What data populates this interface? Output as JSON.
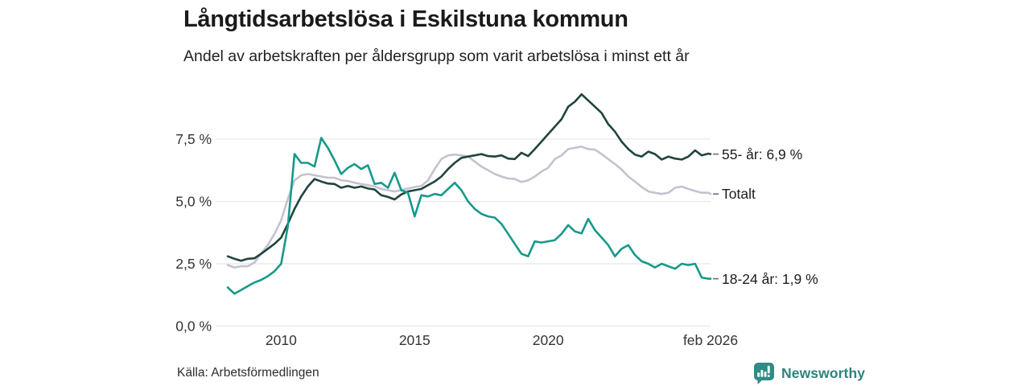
{
  "header": {
    "title": "Långtidsarbetslösa i Eskilstuna kommun",
    "subtitle": "Andel av arbetskraften per åldersgrupp som varit arbetslösa i minst ett år"
  },
  "footer": {
    "source": "Källa: Arbetsförmedlingen",
    "brand_name": "Newsworthy",
    "brand_color": "#2e827e",
    "brand_icon_color": "#2f8b85"
  },
  "chart_data": {
    "type": "line",
    "title": "Långtidsarbetslösa i Eskilstuna kommun",
    "subtitle": "Andel av arbetskraften per åldersgrupp som varit arbetslösa i minst ett år",
    "xlabel": "",
    "ylabel": "",
    "x_unit": "decimal year, monthly-resolution series from Jan 2008 to Feb 2026 (sampled quarterly)",
    "ylim": [
      0,
      9.5
    ],
    "grid": true,
    "legend_position": "labels at right end of lines",
    "gridline_color": "#e7e6ea",
    "axis_text_color": "#333333",
    "tick_dash_color": "#6f6f6f",
    "yticks": [
      {
        "value": 0.0,
        "label": "0,0 %"
      },
      {
        "value": 2.5,
        "label": "2,5 %"
      },
      {
        "value": 5.0,
        "label": "5,0 %"
      },
      {
        "value": 7.5,
        "label": "7,5 %"
      }
    ],
    "xticks": [
      {
        "value": 2010,
        "label": "2010"
      },
      {
        "value": 2015,
        "label": "2015"
      },
      {
        "value": 2020,
        "label": "2020"
      },
      {
        "value": 2026.08,
        "label": "feb 2026"
      }
    ],
    "x": [
      2008.0,
      2008.25,
      2008.5,
      2008.75,
      2009.0,
      2009.25,
      2009.5,
      2009.75,
      2010.0,
      2010.25,
      2010.5,
      2010.75,
      2011.0,
      2011.25,
      2011.5,
      2011.75,
      2012.0,
      2012.25,
      2012.5,
      2012.75,
      2013.0,
      2013.25,
      2013.5,
      2013.75,
      2014.0,
      2014.25,
      2014.5,
      2014.75,
      2015.0,
      2015.25,
      2015.5,
      2015.75,
      2016.0,
      2016.25,
      2016.5,
      2016.75,
      2017.0,
      2017.25,
      2017.5,
      2017.75,
      2018.0,
      2018.25,
      2018.5,
      2018.75,
      2019.0,
      2019.25,
      2019.5,
      2019.75,
      2020.0,
      2020.25,
      2020.5,
      2020.75,
      2021.0,
      2021.25,
      2021.5,
      2021.75,
      2022.0,
      2022.25,
      2022.5,
      2022.75,
      2023.0,
      2023.25,
      2023.5,
      2023.75,
      2024.0,
      2024.25,
      2024.5,
      2024.75,
      2025.0,
      2025.25,
      2025.5,
      2025.75,
      2026.0,
      2026.08
    ],
    "series": [
      {
        "name": "55- år",
        "end_label": "55- år: 6,9 %",
        "end_value_label": "6,9 %",
        "color": "#20443f",
        "values": [
          2.8,
          2.7,
          2.62,
          2.7,
          2.72,
          2.9,
          3.1,
          3.3,
          3.55,
          4.1,
          4.7,
          5.2,
          5.6,
          5.9,
          5.8,
          5.72,
          5.7,
          5.55,
          5.62,
          5.55,
          5.6,
          5.52,
          5.48,
          5.25,
          5.18,
          5.08,
          5.28,
          5.4,
          5.45,
          5.5,
          5.65,
          5.8,
          6.0,
          6.3,
          6.55,
          6.75,
          6.8,
          6.85,
          6.9,
          6.82,
          6.8,
          6.85,
          6.72,
          6.7,
          6.95,
          6.82,
          7.1,
          7.4,
          7.7,
          8.0,
          8.3,
          8.8,
          9.0,
          9.3,
          9.05,
          8.8,
          8.55,
          8.1,
          7.8,
          7.4,
          7.1,
          6.88,
          6.8,
          7.0,
          6.9,
          6.68,
          6.8,
          6.72,
          6.68,
          6.8,
          7.05,
          6.85,
          6.92,
          6.9
        ]
      },
      {
        "name": "Totalt",
        "end_label": "Totalt",
        "end_value_label": "",
        "color": "#c5c2d0",
        "values": [
          2.45,
          2.35,
          2.4,
          2.4,
          2.55,
          2.9,
          3.25,
          3.7,
          4.25,
          5.1,
          5.85,
          6.05,
          6.1,
          6.05,
          6.0,
          5.95,
          5.95,
          5.85,
          5.82,
          5.75,
          5.7,
          5.65,
          5.6,
          5.5,
          5.45,
          5.4,
          5.45,
          5.52,
          5.58,
          5.62,
          5.85,
          6.3,
          6.7,
          6.85,
          6.88,
          6.85,
          6.8,
          6.6,
          6.4,
          6.25,
          6.1,
          6.0,
          5.92,
          5.9,
          5.78,
          5.85,
          6.0,
          6.2,
          6.35,
          6.7,
          6.85,
          7.1,
          7.15,
          7.2,
          7.1,
          7.08,
          6.9,
          6.7,
          6.5,
          6.28,
          6.0,
          5.8,
          5.58,
          5.4,
          5.35,
          5.3,
          5.35,
          5.55,
          5.6,
          5.5,
          5.42,
          5.35,
          5.35,
          5.3
        ]
      },
      {
        "name": "18-24 år",
        "end_label": "18-24 år: 1,9 %",
        "end_value_label": "1,9 %",
        "color": "#17998a",
        "values": [
          1.55,
          1.3,
          1.45,
          1.6,
          1.75,
          1.85,
          2.0,
          2.2,
          2.5,
          4.0,
          6.9,
          6.55,
          6.55,
          6.4,
          7.55,
          7.15,
          6.65,
          6.1,
          6.35,
          6.5,
          6.3,
          6.45,
          5.7,
          5.75,
          5.55,
          6.15,
          5.45,
          5.35,
          4.4,
          5.25,
          5.2,
          5.3,
          5.25,
          5.5,
          5.75,
          5.45,
          5.0,
          4.7,
          4.5,
          4.4,
          4.35,
          4.1,
          3.7,
          3.3,
          2.9,
          2.8,
          3.4,
          3.35,
          3.4,
          3.45,
          3.7,
          4.05,
          3.8,
          3.72,
          4.3,
          3.85,
          3.55,
          3.25,
          2.8,
          3.1,
          3.25,
          2.85,
          2.6,
          2.5,
          2.35,
          2.5,
          2.4,
          2.3,
          2.5,
          2.45,
          2.5,
          1.95,
          1.9,
          1.9
        ]
      }
    ]
  }
}
